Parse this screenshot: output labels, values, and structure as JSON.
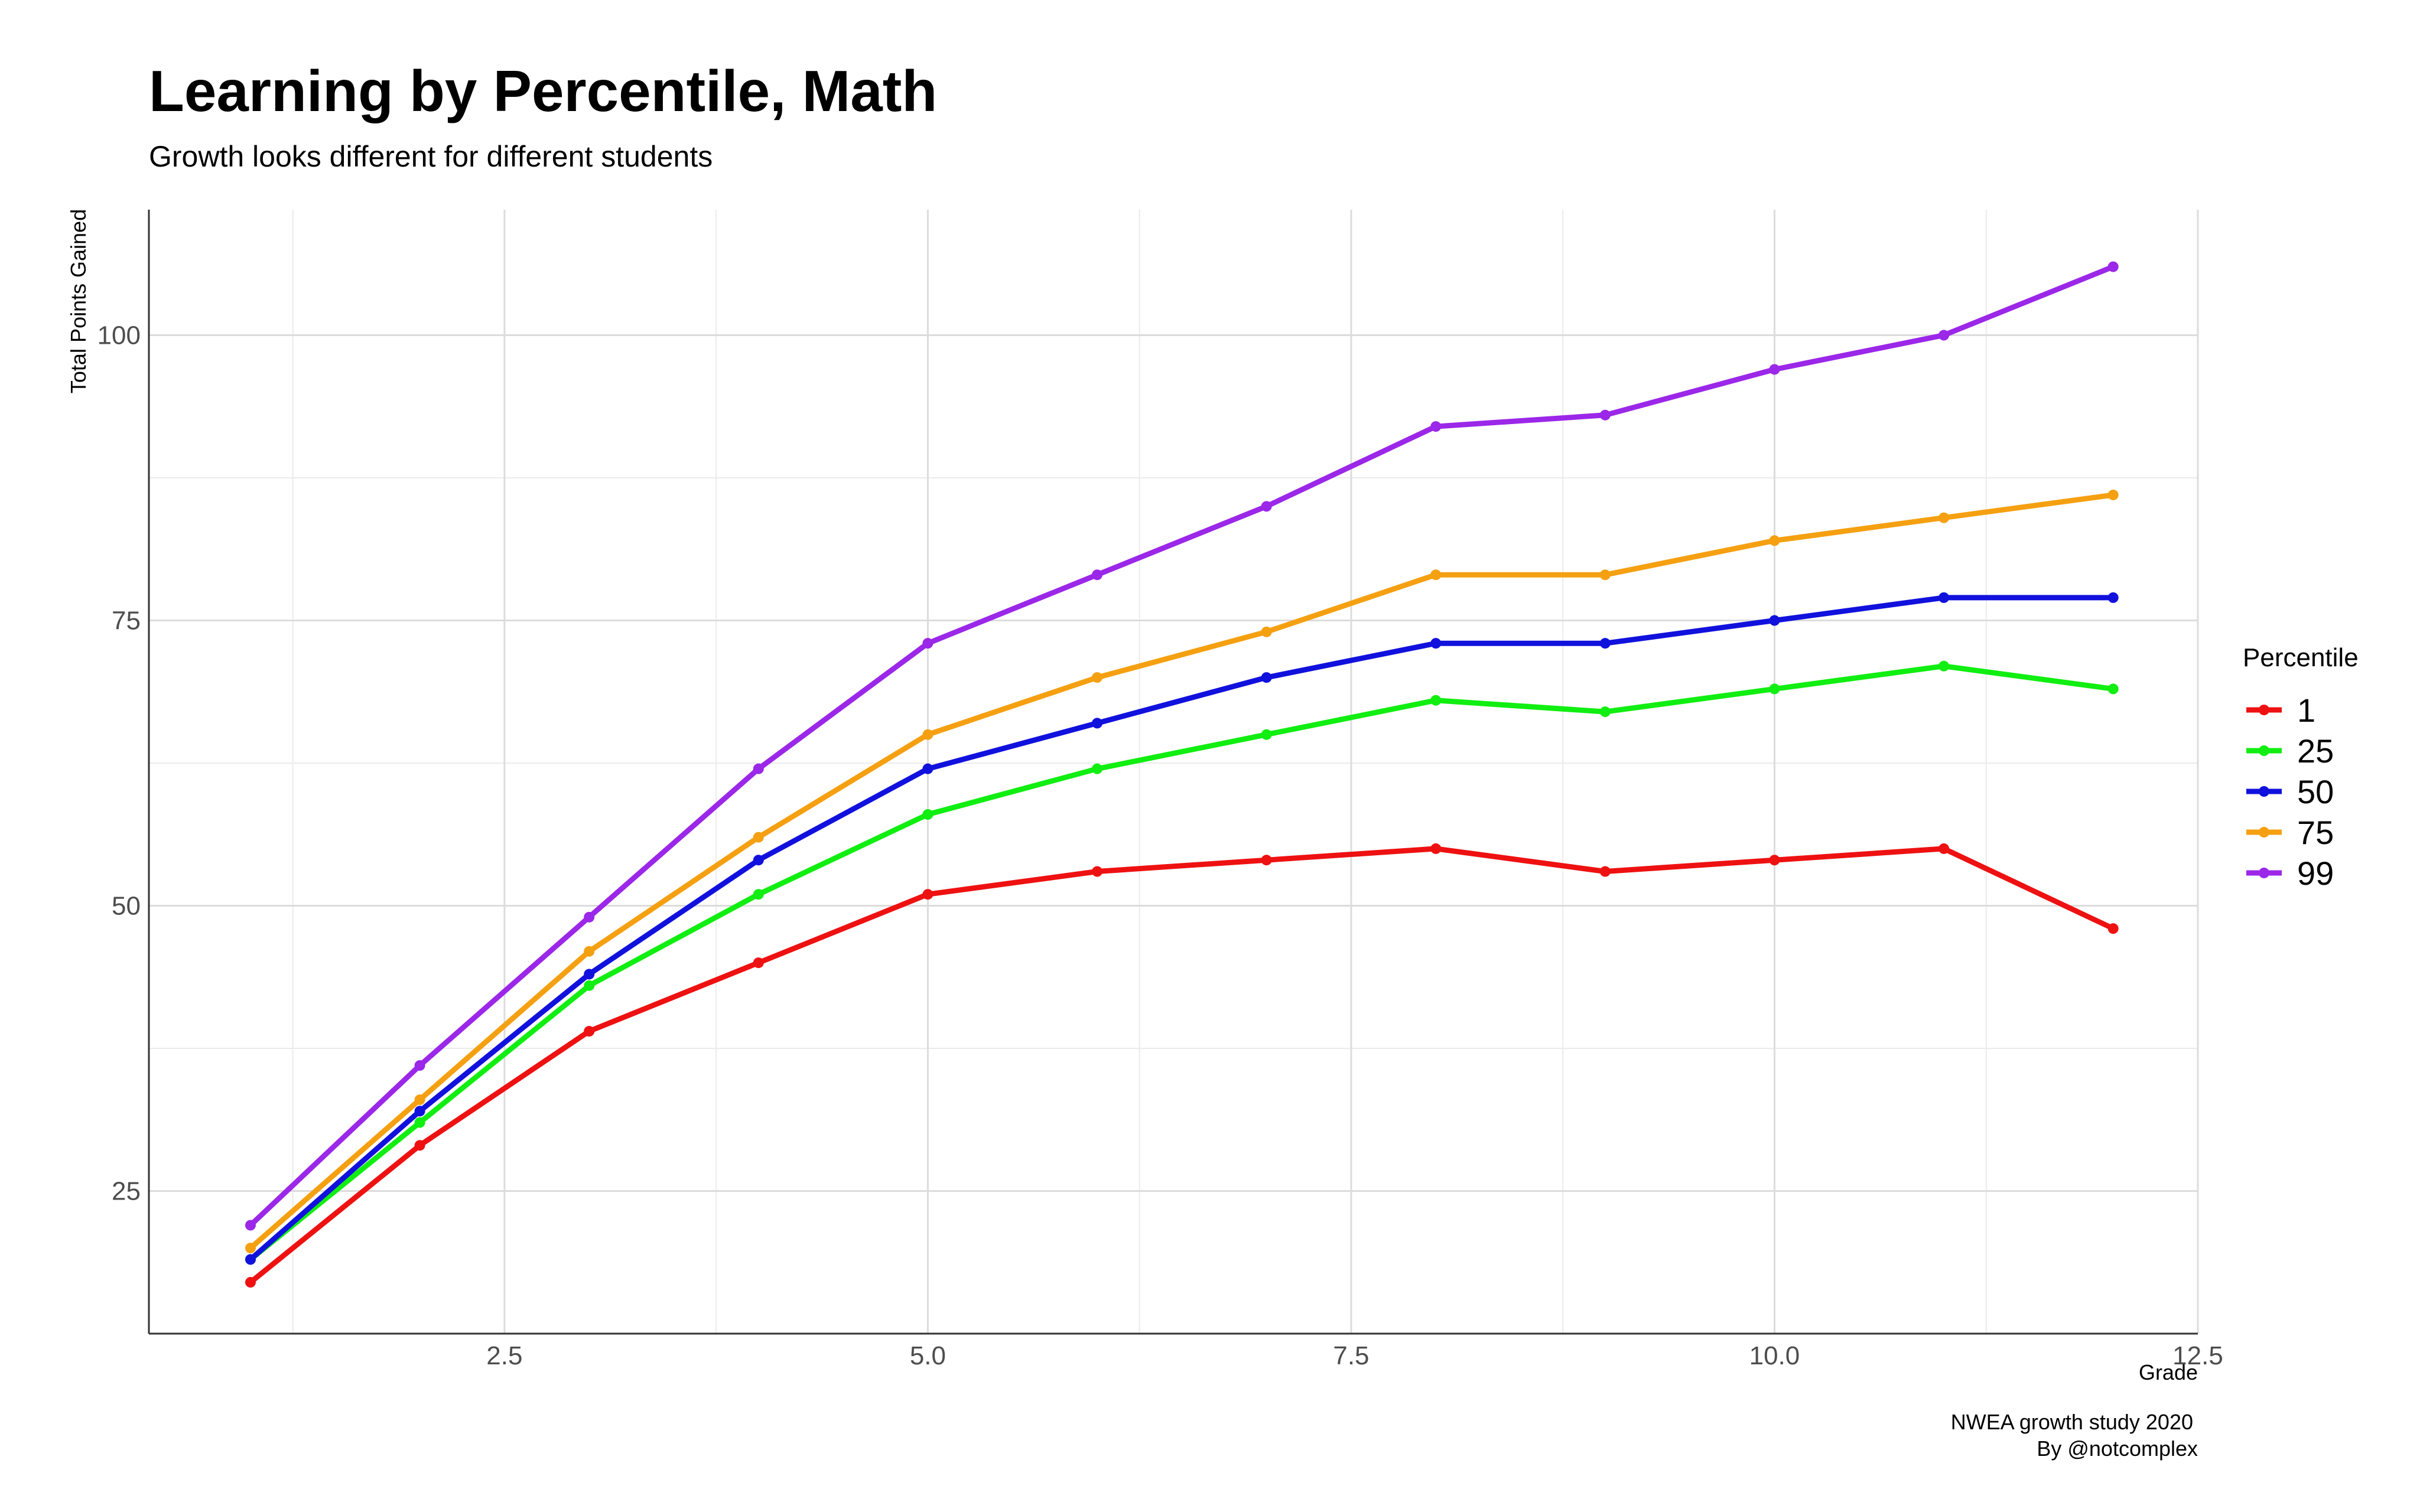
{
  "chart_data": {
    "type": "line",
    "title": "Learning by Percentile, Math",
    "subtitle": "Growth looks different for different students",
    "xlabel": "Grade",
    "ylabel": "Total Points Gained",
    "caption_lines": [
      "NWEA growth study 2020",
      "By @notcomplex"
    ],
    "x": [
      1,
      2,
      3,
      4,
      5,
      6,
      7,
      8,
      9,
      10,
      11,
      12
    ],
    "xlim": [
      0.4,
      12.5
    ],
    "ylim": [
      12.5,
      111
    ],
    "x_ticks": [
      2.5,
      5.0,
      7.5,
      10.0,
      12.5
    ],
    "x_tick_labels": [
      "2.5",
      "5.0",
      "7.5",
      "10.0",
      "12.5"
    ],
    "y_ticks": [
      25,
      50,
      75,
      100
    ],
    "y_tick_labels": [
      "25",
      "50",
      "75",
      "100"
    ],
    "grid": true,
    "legend": {
      "title": "Percentile",
      "placement": "right"
    },
    "series": [
      {
        "name": "1",
        "color": "#ee1111",
        "values": [
          17,
          29,
          39,
          45,
          51,
          53,
          54,
          55,
          53,
          54,
          55,
          48
        ]
      },
      {
        "name": "25",
        "color": "#11ee11",
        "values": [
          19,
          31,
          43,
          51,
          58,
          62,
          65,
          68,
          67,
          69,
          71,
          69
        ]
      },
      {
        "name": "50",
        "color": "#1111dd",
        "values": [
          19,
          32,
          44,
          54,
          62,
          66,
          70,
          73,
          73,
          75,
          77,
          77
        ]
      },
      {
        "name": "75",
        "color": "#f5a011",
        "values": [
          20,
          33,
          46,
          56,
          65,
          70,
          74,
          79,
          79,
          82,
          84,
          86
        ]
      },
      {
        "name": "99",
        "color": "#9b27e8",
        "values": [
          22,
          36,
          49,
          62,
          73,
          79,
          85,
          92,
          93,
          97,
          100,
          106
        ]
      }
    ]
  }
}
